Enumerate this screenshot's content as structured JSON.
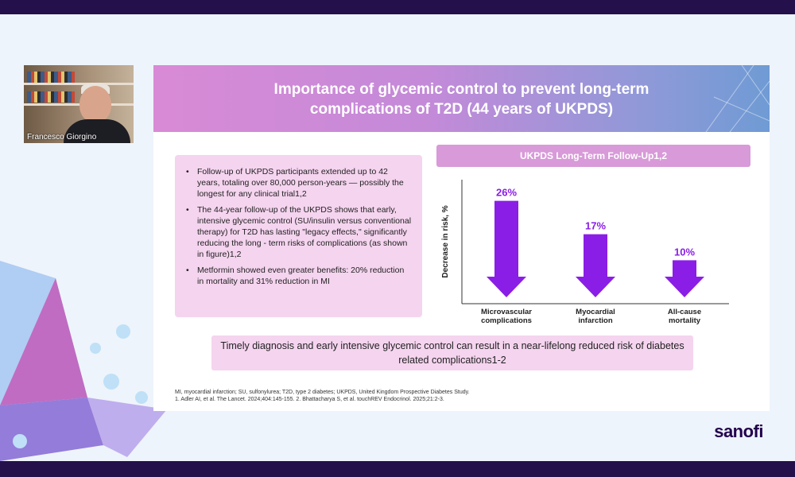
{
  "participant": {
    "name": "Francesco Giorgino"
  },
  "slide": {
    "title_line1": "Importance of glycemic control to prevent long-term",
    "title_line2": "complications of T2D (44 years of UKPDS)",
    "bullets": [
      "Follow-up of UKPDS participants extended up to 42 years, totaling over 80,000 person-years — possibly the longest for any clinical trial1,2",
      "The 44-year follow-up of the UKPDS shows that early, intensive glycemic control (SU/insulin versus conventional therapy) for T2D has lasting \"legacy effects,\" significantly reducing the long - term risks of complications (as shown in figure)1,2",
      "Metformin showed even greater benefits: 20% reduction in mortality and 31% reduction in MI"
    ],
    "chart_header": "UKPDS Long-Term Follow-Up1,2",
    "callout": "Timely diagnosis and early intensive glycemic control can result in a near-lifelong reduced risk of diabetes related complications1-2",
    "footnote_line1": "MI, myocardial infarction; SU, sulfonylurea; T2D, type 2 diabetes; UKPDS, United Kingdom Prospective Diabetes Study.",
    "footnote_line2": "1. Adler AI, et al. The Lancet. 2024;404:145-155. 2. Bhattacharya S, et al. touchREV Endocrinol. 2025;21:2-3."
  },
  "chart_data": {
    "type": "bar",
    "title": "UKPDS Long-Term Follow-Up1,2",
    "ylabel": "Decrease in risk, %",
    "categories": [
      [
        "Microvascular",
        "complications"
      ],
      [
        "Myocardial",
        "infarction"
      ],
      [
        "All-cause",
        "mortality"
      ]
    ],
    "values": [
      26,
      17,
      10
    ],
    "value_labels": [
      "26%",
      "17%",
      "10%"
    ],
    "ylim": [
      0,
      30
    ],
    "color": "#8a1ee6"
  },
  "logo": {
    "text": "sanofi"
  },
  "colors": {
    "accent": "#8a1ee6",
    "frame": "#24104a",
    "pink_panel": "#f5d4ef"
  }
}
